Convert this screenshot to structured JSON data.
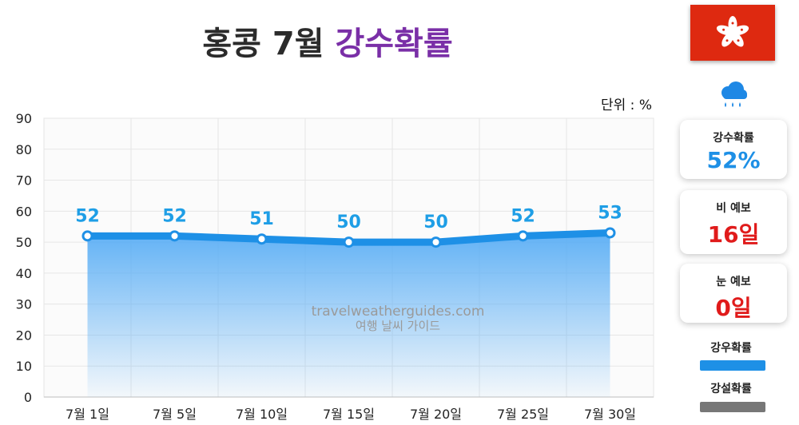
{
  "title": {
    "main": "홍콩 7월",
    "accent": "강수확률"
  },
  "unit_label": "단위 : %",
  "stats": [
    {
      "label": "강수확률",
      "value": "52%",
      "color": "#1e90e6"
    },
    {
      "label": "비 예보",
      "value": "16일",
      "color": "#e01b1b"
    },
    {
      "label": "눈 예보",
      "value": "0일",
      "color": "#e01b1b"
    }
  ],
  "legend": [
    {
      "label": "강우확률",
      "color": "#1e90e6"
    },
    {
      "label": "강설확률",
      "color": "#777777"
    }
  ],
  "watermark": {
    "line1": "travelweatherguides.com",
    "line2": "여행 날씨 가이드"
  },
  "icons": {
    "flag": "hong-kong-flag-icon",
    "weather": "rain-cloud-icon"
  },
  "chart_data": {
    "type": "area",
    "categories": [
      "7월 1일",
      "7월 5일",
      "7월 10일",
      "7월 15일",
      "7월 20일",
      "7월 25일",
      "7월 30일"
    ],
    "series": [
      {
        "name": "강우확률",
        "values": [
          52,
          52,
          51,
          50,
          50,
          52,
          53
        ],
        "color": "#1e90e6"
      }
    ],
    "data_labels": [
      "52",
      "52",
      "51",
      "50",
      "50",
      "52",
      "53"
    ],
    "yticks": [
      "0",
      "10",
      "20",
      "30",
      "40",
      "50",
      "60",
      "70",
      "80",
      "90"
    ],
    "ylim": [
      0,
      90
    ],
    "grid": true,
    "xlabel": "",
    "ylabel": ""
  }
}
